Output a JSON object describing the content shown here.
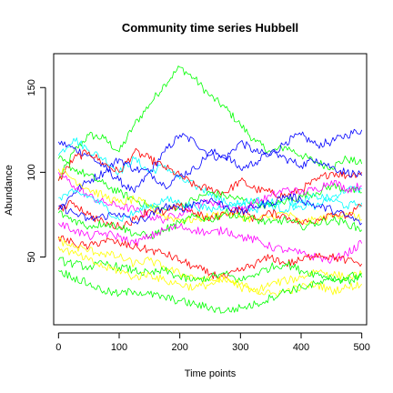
{
  "chart_data": {
    "type": "line",
    "title": "Community time series Hubbell",
    "xlabel": "Time points",
    "ylabel": "Abundance",
    "xlim": [
      -8,
      508
    ],
    "ylim": [
      10,
      170
    ],
    "x_ticks": [
      0,
      100,
      200,
      300,
      400,
      500
    ],
    "x_tick_labels": [
      "0",
      "100",
      "200",
      "300",
      "400",
      "500"
    ],
    "y_ticks": [
      50,
      100,
      150
    ],
    "y_tick_labels": [
      "50",
      "100",
      "150"
    ],
    "grid": false,
    "legend": "none",
    "x": [
      0,
      25,
      50,
      75,
      100,
      125,
      150,
      175,
      200,
      225,
      250,
      275,
      300,
      325,
      350,
      375,
      400,
      425,
      450,
      475,
      500
    ],
    "series": [
      {
        "color": "#00ff00",
        "values": [
          95,
          112,
          122,
          120,
          112,
          128,
          140,
          152,
          162,
          155,
          145,
          138,
          128,
          118,
          112,
          115,
          110,
          106,
          103,
          108,
          105
        ]
      },
      {
        "color": "#0000ff",
        "values": [
          118,
          114,
          110,
          103,
          95,
          88,
          100,
          112,
          122,
          118,
          110,
          108,
          118,
          112,
          110,
          118,
          122,
          116,
          118,
          122,
          125
        ]
      },
      {
        "color": "#00ffff",
        "values": [
          110,
          120,
          113,
          108,
          100,
          108,
          100,
          104,
          96,
          92,
          88,
          82,
          80,
          78,
          82,
          84,
          80,
          80,
          85,
          90,
          90
        ]
      },
      {
        "color": "#ff0000",
        "values": [
          95,
          108,
          112,
          105,
          100,
          112,
          108,
          103,
          98,
          92,
          90,
          88,
          95,
          90,
          88,
          86,
          90,
          95,
          100,
          98,
          100
        ]
      },
      {
        "color": "#0000ff",
        "values": [
          78,
          88,
          95,
          100,
          108,
          102,
          100,
          92,
          98,
          102,
          112,
          110,
          102,
          106,
          112,
          108,
          104,
          108,
          103,
          100,
          98
        ]
      },
      {
        "color": "#00ff00",
        "values": [
          108,
          102,
          98,
          93,
          88,
          84,
          80,
          78,
          80,
          84,
          88,
          86,
          84,
          82,
          80,
          83,
          86,
          88,
          92,
          90,
          88
        ]
      },
      {
        "color": "#ff00ff",
        "values": [
          100,
          92,
          86,
          82,
          80,
          78,
          74,
          72,
          76,
          80,
          83,
          80,
          78,
          82,
          86,
          90,
          88,
          90,
          95,
          90,
          92
        ]
      },
      {
        "color": "#ffff00",
        "values": [
          102,
          96,
          90,
          86,
          82,
          84,
          80,
          74,
          72,
          72,
          74,
          76,
          74,
          72,
          74,
          76,
          70,
          72,
          74,
          76,
          72
        ]
      },
      {
        "color": "#00ffff",
        "values": [
          85,
          88,
          86,
          80,
          72,
          76,
          80,
          84,
          82,
          80,
          78,
          80,
          82,
          84,
          80,
          78,
          82,
          86,
          84,
          80,
          82
        ]
      },
      {
        "color": "#ff0000",
        "values": [
          78,
          82,
          75,
          70,
          68,
          72,
          78,
          76,
          80,
          76,
          72,
          76,
          78,
          72,
          76,
          74,
          70,
          72,
          76,
          74,
          80
        ]
      },
      {
        "color": "#0000ff",
        "values": [
          80,
          76,
          72,
          74,
          76,
          70,
          74,
          80,
          78,
          82,
          84,
          80,
          76,
          80,
          82,
          86,
          84,
          80,
          78,
          74,
          70
        ]
      },
      {
        "color": "#00ff00",
        "values": [
          76,
          72,
          68,
          70,
          68,
          64,
          62,
          66,
          70,
          74,
          72,
          76,
          74,
          72,
          70,
          72,
          68,
          70,
          72,
          70,
          66
        ]
      },
      {
        "color": "#ff00ff",
        "values": [
          70,
          66,
          62,
          64,
          62,
          58,
          62,
          66,
          68,
          66,
          64,
          66,
          62,
          60,
          56,
          54,
          52,
          50,
          48,
          52,
          58
        ]
      },
      {
        "color": "#ff0000",
        "values": [
          62,
          58,
          56,
          60,
          58,
          56,
          54,
          52,
          48,
          44,
          40,
          38,
          42,
          46,
          50,
          46,
          48,
          52,
          50,
          48,
          46
        ]
      },
      {
        "color": "#ffff00",
        "values": [
          60,
          56,
          54,
          52,
          50,
          46,
          48,
          44,
          40,
          38,
          36,
          38,
          32,
          30,
          34,
          36,
          38,
          42,
          40,
          38,
          40
        ]
      },
      {
        "color": "#00ff00",
        "values": [
          48,
          46,
          44,
          46,
          44,
          42,
          40,
          42,
          38,
          36,
          38,
          40,
          36,
          40,
          44,
          46,
          42,
          40,
          38,
          36,
          38
        ]
      },
      {
        "color": "#ffff00",
        "values": [
          56,
          52,
          48,
          44,
          42,
          38,
          40,
          36,
          34,
          32,
          34,
          36,
          34,
          30,
          28,
          30,
          32,
          34,
          30,
          32,
          34
        ]
      },
      {
        "color": "#00ff00",
        "values": [
          42,
          38,
          34,
          30,
          28,
          30,
          28,
          26,
          24,
          22,
          20,
          18,
          20,
          22,
          26,
          30,
          32,
          34,
          36,
          38,
          40
        ]
      }
    ]
  }
}
